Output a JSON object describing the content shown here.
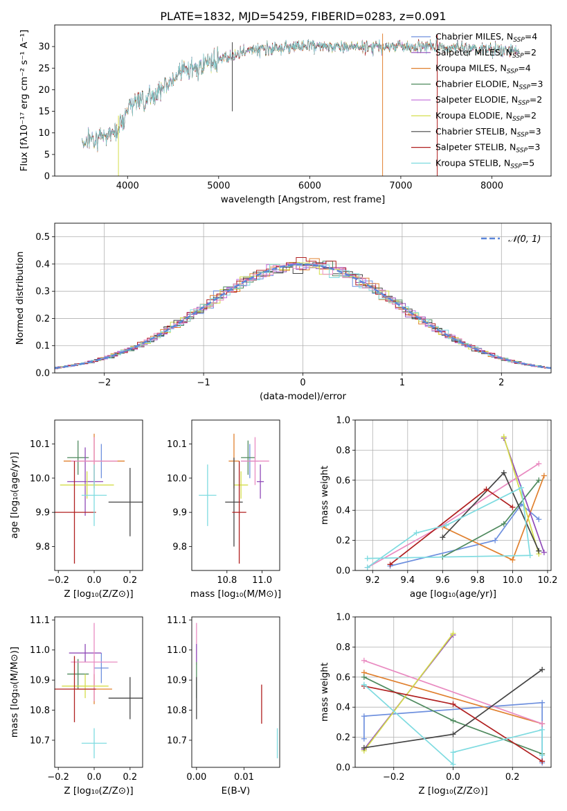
{
  "figure": {
    "title": "PLATE=1832, MJD=54259, FIBERID=0283, z=0.091"
  },
  "model_colors": [
    "#6d8fde",
    "#8f4ab8",
    "#e0802e",
    "#4f8a5e",
    "#c06ad9",
    "#d4dd4a",
    "#444444",
    "#b01f1f",
    "#7edbe0",
    "#e98bc1"
  ],
  "chart_data": [
    {
      "id": "spectrum",
      "type": "line",
      "xlabel": "wavelength [Angstrom, rest frame]",
      "ylabel": "Flux [fλ10⁻¹⁷ erg cm⁻² s⁻¹ A⁻¹]",
      "xlim": [
        3200,
        8650
      ],
      "ylim": [
        0,
        35
      ],
      "xticks": [
        4000,
        5000,
        6000,
        7000,
        8000
      ],
      "yticks": [
        0,
        5,
        10,
        15,
        20,
        25,
        30
      ],
      "x_range_data": [
        3500,
        8300
      ],
      "series": [
        {
          "name": "Chabrier MILES, N",
          "sub": "SSP",
          "suffix": "=4",
          "color": "#6d8fde"
        },
        {
          "name": "Salpeter MILES, N",
          "sub": "SSP",
          "suffix": "=2",
          "color": "#8f4ab8"
        },
        {
          "name": "Kroupa MILES, N",
          "sub": "SSP",
          "suffix": "=4",
          "color": "#e0802e"
        },
        {
          "name": "Chabrier ELODIE, N",
          "sub": "SSP",
          "suffix": "=3",
          "color": "#4f8a5e"
        },
        {
          "name": "Salpeter ELODIE, N",
          "sub": "SSP",
          "suffix": "=2",
          "color": "#c06ad9"
        },
        {
          "name": "Kroupa ELODIE, N",
          "sub": "SSP",
          "suffix": "=2",
          "color": "#d4dd4a"
        },
        {
          "name": "Chabrier STELIB, N",
          "sub": "SSP",
          "suffix": "=3",
          "color": "#444444"
        },
        {
          "name": "Salpeter STELIB, N",
          "sub": "SSP",
          "suffix": "=3",
          "color": "#b01f1f"
        },
        {
          "name": "Kroupa STELIB, N",
          "sub": "SSP",
          "suffix": "=5",
          "color": "#7edbe0"
        }
      ],
      "continuum_knots": [
        [
          3500,
          8
        ],
        [
          3700,
          9
        ],
        [
          3900,
          11
        ],
        [
          4000,
          16
        ],
        [
          4300,
          19
        ],
        [
          4600,
          24
        ],
        [
          5000,
          27
        ],
        [
          5300,
          29
        ],
        [
          5800,
          30
        ],
        [
          6300,
          30
        ],
        [
          6800,
          30
        ],
        [
          7300,
          30
        ],
        [
          7800,
          29.5
        ],
        [
          8300,
          29
        ]
      ],
      "spikes": [
        [
          5150,
          15
        ],
        [
          3900,
          0
        ],
        [
          6800,
          0
        ],
        [
          7400,
          0
        ]
      ]
    },
    {
      "id": "residuals",
      "type": "histogram",
      "xlabel": "(data-model)/error",
      "ylabel": "Normed distribution",
      "xlim": [
        -2.5,
        2.5
      ],
      "ylim": [
        0,
        0.55
      ],
      "xticks": [
        -2,
        -1,
        0,
        1,
        2
      ],
      "yticks": [
        0.0,
        0.1,
        0.2,
        0.3,
        0.4,
        0.5
      ],
      "legend": "𝒩(0, 1)",
      "legend_position": "top-right",
      "grid": true
    },
    {
      "id": "age-vs-Z",
      "type": "scatter-errorbar",
      "xlabel": "Z [log₁₀(Z/Z⊙)]",
      "ylabel": "age  [log₁₀(age/yr)]",
      "xlim": [
        -0.22,
        0.27
      ],
      "ylim": [
        9.73,
        10.17
      ],
      "xticks": [
        -0.2,
        0.0,
        0.2
      ],
      "yticks": [
        9.8,
        9.9,
        10.0,
        10.1
      ],
      "points": [
        {
          "x": 0.04,
          "y": 10.05,
          "xerr": 0.09,
          "yerr": 0.05,
          "color": "#6d8fde"
        },
        {
          "x": 0.0,
          "y": 10.05,
          "xerr": 0.17,
          "yerr": 0.08,
          "color": "#e0802e"
        },
        {
          "x": -0.09,
          "y": 10.06,
          "xerr": 0.06,
          "yerr": 0.05,
          "color": "#4f8a5e"
        },
        {
          "x": -0.05,
          "y": 9.99,
          "xerr": 0.1,
          "yerr": 0.1,
          "color": "#8f4ab8"
        },
        {
          "x": 0.0,
          "y": 10.05,
          "xerr": 0.13,
          "yerr": 0.07,
          "color": "#e98bc1"
        },
        {
          "x": -0.04,
          "y": 9.98,
          "xerr": 0.15,
          "yerr": 0.04,
          "color": "#d4dd4a"
        },
        {
          "x": 0.2,
          "y": 9.93,
          "xerr": 0.12,
          "yerr": 0.1,
          "color": "#444444"
        },
        {
          "x": -0.11,
          "y": 9.9,
          "xerr": 0.12,
          "yerr": 0.15,
          "color": "#b01f1f"
        },
        {
          "x": 0.0,
          "y": 9.95,
          "xerr": 0.07,
          "yerr": 0.09,
          "color": "#7edbe0"
        }
      ]
    },
    {
      "id": "age-vs-mass",
      "type": "scatter-errorbar",
      "xlabel": "mass [log₁₀(M/M⊙)]",
      "xlim": [
        10.6,
        11.1
      ],
      "ylim": [
        9.73,
        10.17
      ],
      "xticks": [
        10.8,
        11.0
      ],
      "yticks": [
        9.8,
        9.9,
        10.0,
        10.1
      ],
      "points": [
        {
          "x": 10.93,
          "y": 10.05,
          "xerr": 0.05,
          "yerr": 0.05,
          "color": "#6d8fde"
        },
        {
          "x": 10.84,
          "y": 10.05,
          "xerr": 0.03,
          "yerr": 0.08,
          "color": "#e0802e"
        },
        {
          "x": 10.92,
          "y": 10.06,
          "xerr": 0.04,
          "yerr": 0.05,
          "color": "#4f8a5e"
        },
        {
          "x": 10.99,
          "y": 9.99,
          "xerr": 0.02,
          "yerr": 0.05,
          "color": "#8f4ab8"
        },
        {
          "x": 10.96,
          "y": 10.05,
          "xerr": 0.08,
          "yerr": 0.07,
          "color": "#e98bc1"
        },
        {
          "x": 10.88,
          "y": 9.98,
          "xerr": 0.04,
          "yerr": 0.04,
          "color": "#d4dd4a"
        },
        {
          "x": 10.84,
          "y": 9.93,
          "xerr": 0.05,
          "yerr": 0.13,
          "color": "#444444"
        },
        {
          "x": 10.87,
          "y": 9.9,
          "xerr": 0.04,
          "yerr": 0.15,
          "color": "#b01f1f"
        },
        {
          "x": 10.69,
          "y": 9.95,
          "xerr": 0.05,
          "yerr": 0.09,
          "color": "#7edbe0"
        }
      ]
    },
    {
      "id": "weight-vs-age",
      "type": "line",
      "xlabel": "age  [log₁₀(age/yr)]",
      "ylabel": "mass weight",
      "xlim": [
        9.1,
        10.22
      ],
      "ylim": [
        0,
        1.0
      ],
      "xticks": [
        9.2,
        9.4,
        9.6,
        9.8,
        10.0,
        10.2
      ],
      "yticks": [
        0.0,
        0.2,
        0.4,
        0.6,
        0.8,
        1.0
      ],
      "grid": true,
      "series": [
        {
          "color": "#6d8fde",
          "x": [
            9.3,
            9.9,
            10.05,
            10.15
          ],
          "y": [
            0.03,
            0.2,
            0.44,
            0.34
          ]
        },
        {
          "color": "#e0802e",
          "x": [
            9.6,
            10.0,
            10.18
          ],
          "y": [
            0.29,
            0.07,
            0.63
          ]
        },
        {
          "color": "#4f8a5e",
          "x": [
            9.6,
            9.95,
            10.15
          ],
          "y": [
            0.09,
            0.31,
            0.6
          ]
        },
        {
          "color": "#8f4ab8",
          "x": [
            9.95,
            10.18
          ],
          "y": [
            0.88,
            0.12
          ]
        },
        {
          "color": "#e98bc1",
          "x": [
            9.17,
            9.6,
            10.15
          ],
          "y": [
            0.02,
            0.3,
            0.71
          ]
        },
        {
          "color": "#d4dd4a",
          "x": [
            9.95,
            10.15
          ],
          "y": [
            0.89,
            0.11
          ]
        },
        {
          "color": "#444444",
          "x": [
            9.6,
            9.95,
            10.15
          ],
          "y": [
            0.22,
            0.65,
            0.13
          ]
        },
        {
          "color": "#b01f1f",
          "x": [
            9.3,
            9.85,
            10.0
          ],
          "y": [
            0.04,
            0.54,
            0.42
          ]
        },
        {
          "color": "#7edbe0",
          "x": [
            9.17,
            9.45,
            9.62,
            10.05,
            10.1,
            9.17
          ],
          "y": [
            0.02,
            0.25,
            0.3,
            0.55,
            0.1,
            0.08
          ]
        }
      ]
    },
    {
      "id": "mass-vs-Z",
      "type": "scatter-errorbar",
      "xlabel": "Z [log₁₀(Z/Z⊙)]",
      "ylabel": "mass [log₁₀(M/M⊙)]",
      "xlim": [
        -0.22,
        0.27
      ],
      "ylim": [
        10.61,
        11.11
      ],
      "xticks": [
        -0.2,
        0.0,
        0.2
      ],
      "yticks": [
        10.7,
        10.8,
        10.9,
        11.0,
        11.1
      ],
      "points": [
        {
          "x": 0.04,
          "y": 10.94,
          "xerr": 0.04,
          "yerr": 0.05,
          "color": "#6d8fde"
        },
        {
          "x": 0.0,
          "y": 10.87,
          "xerr": 0.1,
          "yerr": 0.05,
          "color": "#e0802e"
        },
        {
          "x": -0.09,
          "y": 10.92,
          "xerr": 0.06,
          "yerr": 0.05,
          "color": "#4f8a5e"
        },
        {
          "x": -0.05,
          "y": 10.99,
          "xerr": 0.09,
          "yerr": 0.03,
          "color": "#8f4ab8"
        },
        {
          "x": 0.0,
          "y": 10.96,
          "xerr": 0.13,
          "yerr": 0.13,
          "color": "#e98bc1"
        },
        {
          "x": -0.05,
          "y": 10.88,
          "xerr": 0.13,
          "yerr": 0.04,
          "color": "#d4dd4a"
        },
        {
          "x": 0.2,
          "y": 10.84,
          "xerr": 0.12,
          "yerr": 0.07,
          "color": "#444444"
        },
        {
          "x": -0.11,
          "y": 10.87,
          "xerr": 0.12,
          "yerr": 0.11,
          "color": "#b01f1f"
        },
        {
          "x": 0.0,
          "y": 10.69,
          "xerr": 0.07,
          "yerr": 0.05,
          "color": "#7edbe0"
        }
      ]
    },
    {
      "id": "mass-vs-ebv",
      "type": "scatter-errorbar",
      "xlabel": "E(B-V)",
      "xlim": [
        -0.001,
        0.0175
      ],
      "ylim": [
        10.61,
        11.11
      ],
      "xticks": [
        0.0,
        0.01
      ],
      "xtick_labels": [
        "0.00",
        "0.01"
      ],
      "yticks": [
        10.7,
        10.8,
        10.9,
        11.0,
        11.1
      ],
      "points": [
        {
          "x": 0.0,
          "y": 11.02,
          "xerr": 0.0,
          "yerr": 0.07,
          "color": "#e98bc1"
        },
        {
          "x": 0.0,
          "y": 10.99,
          "xerr": 0.0,
          "yerr": 0.03,
          "color": "#8f4ab8"
        },
        {
          "x": 0.0,
          "y": 10.9,
          "xerr": 0.0,
          "yerr": 0.06,
          "color": "#4f8a5e"
        },
        {
          "x": 0.0,
          "y": 10.84,
          "xerr": 0.0,
          "yerr": 0.07,
          "color": "#444444"
        },
        {
          "x": 0.0137,
          "y": 10.82,
          "xerr": 0.0,
          "yerr": 0.065,
          "color": "#b01f1f"
        },
        {
          "x": 0.017,
          "y": 10.69,
          "xerr": 0.0,
          "yerr": 0.05,
          "color": "#7edbe0"
        }
      ]
    },
    {
      "id": "weight-vs-Z",
      "type": "line",
      "xlabel": "Z [log₁₀(Z/Z⊙)]",
      "ylabel": "mass weight",
      "xlim": [
        -0.33,
        0.33
      ],
      "ylim": [
        0,
        1.0
      ],
      "xticks": [
        -0.2,
        0.0,
        0.2
      ],
      "yticks": [
        0.0,
        0.2,
        0.4,
        0.6,
        0.8,
        1.0
      ],
      "grid": true,
      "series": [
        {
          "color": "#6d8fde",
          "x": [
            -0.3,
            -0.3,
            0.3,
            0.3
          ],
          "y": [
            0.19,
            0.34,
            0.43,
            0.03
          ]
        },
        {
          "color": "#e0802e",
          "x": [
            -0.3,
            0.3
          ],
          "y": [
            0.63,
            0.29
          ]
        },
        {
          "color": "#4f8a5e",
          "x": [
            -0.3,
            0.0,
            0.3
          ],
          "y": [
            0.6,
            0.31,
            0.09
          ]
        },
        {
          "color": "#8f4ab8",
          "x": [
            -0.3,
            0.0
          ],
          "y": [
            0.12,
            0.88
          ]
        },
        {
          "color": "#e98bc1",
          "x": [
            -0.3,
            0.3
          ],
          "y": [
            0.71,
            0.29
          ]
        },
        {
          "color": "#d4dd4a",
          "x": [
            -0.3,
            0.0
          ],
          "y": [
            0.11,
            0.89
          ]
        },
        {
          "color": "#444444",
          "x": [
            -0.3,
            0.0,
            0.3
          ],
          "y": [
            0.13,
            0.22,
            0.65
          ]
        },
        {
          "color": "#b01f1f",
          "x": [
            -0.3,
            0.0,
            0.3
          ],
          "y": [
            0.54,
            0.42,
            0.04
          ]
        },
        {
          "color": "#7edbe0",
          "x": [
            -0.3,
            0.0,
            0.0,
            0.3,
            0.3
          ],
          "y": [
            0.55,
            0.02,
            0.1,
            0.25,
            0.08
          ]
        }
      ]
    }
  ]
}
